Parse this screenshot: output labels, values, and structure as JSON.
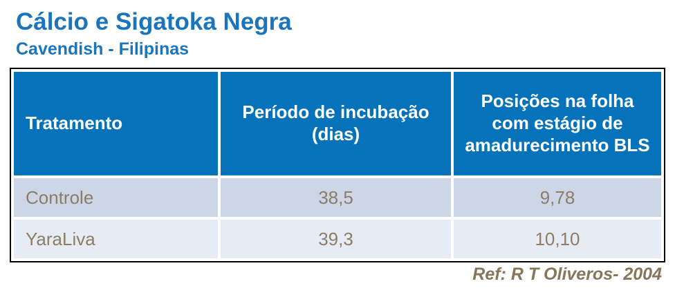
{
  "title": "Cálcio e Sigatoka Negra",
  "subtitle": "Cavendish - Filipinas",
  "table": {
    "headers": [
      "Tratamento",
      "Período de incubação (dias)",
      "Posições na folha com estágio de amadurecimento BLS"
    ],
    "rows": [
      {
        "treatment": "Controle",
        "incubation_days": "38,5",
        "bls_positions": "9,78"
      },
      {
        "treatment": "YaraLiva",
        "incubation_days": "39,3",
        "bls_positions": "10,10"
      }
    ]
  },
  "footer": {
    "reference": "Ref: R T Oliveros- 2004"
  },
  "colors": {
    "title_blue": "#1B75BC",
    "header_blue": "#0572BA",
    "row_odd_bg": "#CCD6E7",
    "row_even_bg": "#E7EBF3",
    "data_text": "#8C7D67",
    "footer_text": "#877659",
    "table_border": "#000000"
  }
}
